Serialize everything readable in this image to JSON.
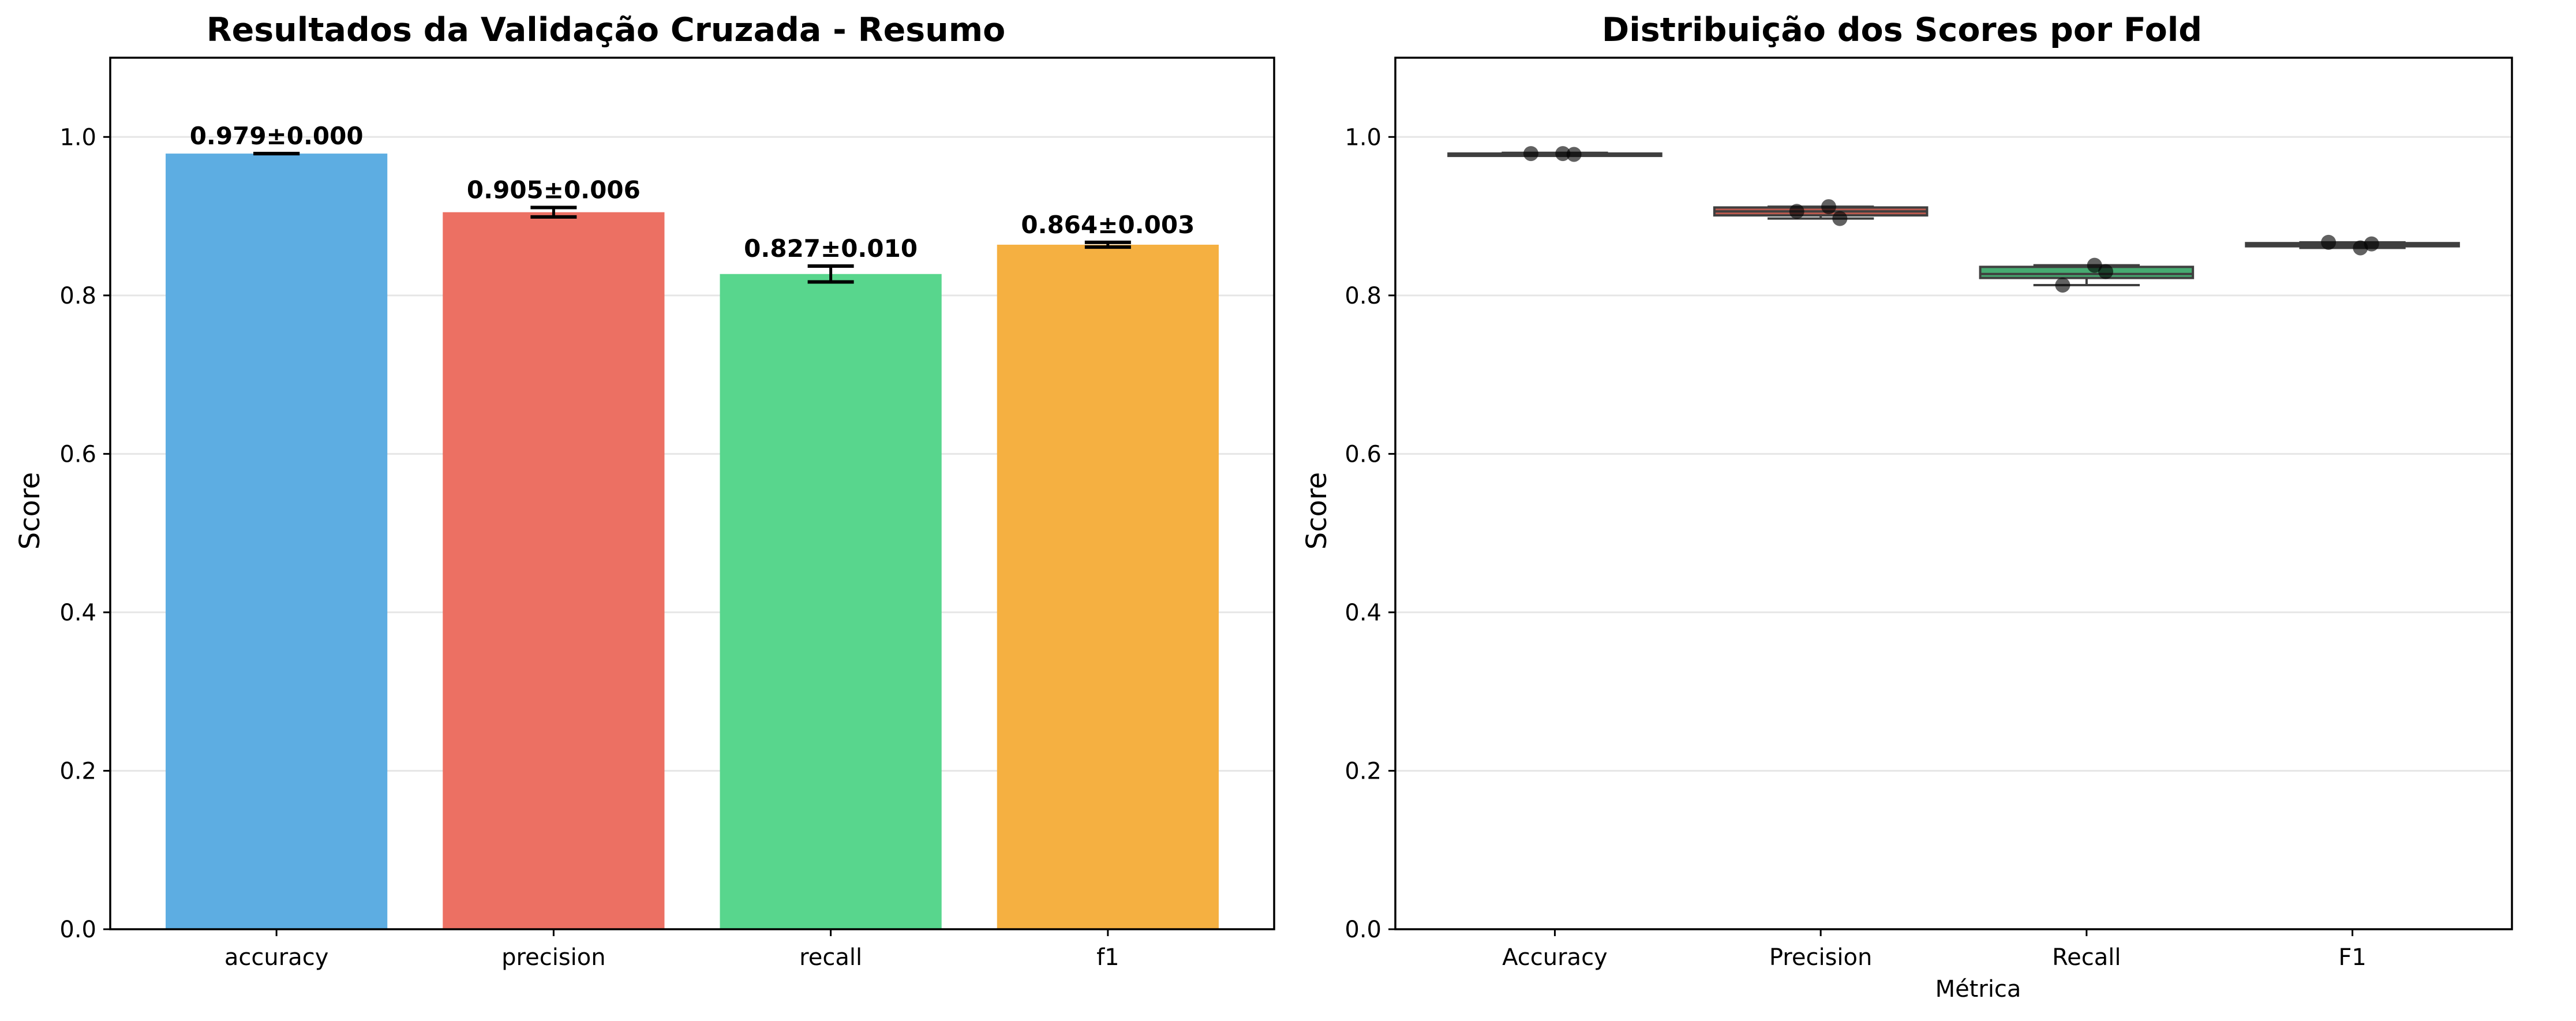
{
  "chart_data": [
    {
      "type": "bar",
      "title": "Resultados da Validação Cruzada - Resumo",
      "xlabel": "",
      "ylabel": "Score",
      "ylim": [
        0,
        1.1
      ],
      "yticks": [
        "0.0",
        "0.2",
        "0.4",
        "0.6",
        "0.8",
        "1.0"
      ],
      "grid": "y",
      "categories": [
        "accuracy",
        "precision",
        "recall",
        "f1"
      ],
      "values": [
        0.979,
        0.905,
        0.827,
        0.864
      ],
      "errors": [
        0.0,
        0.006,
        0.01,
        0.003
      ],
      "data_labels": [
        "0.979±0.000",
        "0.905±0.006",
        "0.827±0.010",
        "0.864±0.003"
      ],
      "colors": [
        "#5dade2",
        "#ec7063",
        "#58d68d",
        "#f5b041"
      ]
    },
    {
      "type": "box",
      "title": "Distribuição dos Scores por Fold",
      "xlabel": "Métrica",
      "ylabel": "Score",
      "ylim": [
        0,
        1.1
      ],
      "yticks": [
        "0.0",
        "0.2",
        "0.4",
        "0.6",
        "0.8",
        "1.0"
      ],
      "grid": "y",
      "categories": [
        "Accuracy",
        "Precision",
        "Recall",
        "F1"
      ],
      "colors": [
        "#5dade2",
        "#ec7063",
        "#58d68d",
        "#f5b041"
      ],
      "boxes": [
        {
          "min": 0.978,
          "q1": 0.978,
          "median": 0.979,
          "q3": 0.979,
          "max": 0.98,
          "points": [
            0.979,
            0.979,
            0.978
          ]
        },
        {
          "min": 0.897,
          "q1": 0.901,
          "median": 0.906,
          "q3": 0.911,
          "max": 0.912,
          "points": [
            0.906,
            0.912,
            0.897
          ]
        },
        {
          "min": 0.813,
          "q1": 0.822,
          "median": 0.827,
          "q3": 0.836,
          "max": 0.838,
          "points": [
            0.813,
            0.838,
            0.83
          ]
        },
        {
          "min": 0.86,
          "q1": 0.862,
          "median": 0.864,
          "q3": 0.866,
          "max": 0.867,
          "points": [
            0.867,
            0.86,
            0.865
          ]
        }
      ]
    }
  ]
}
